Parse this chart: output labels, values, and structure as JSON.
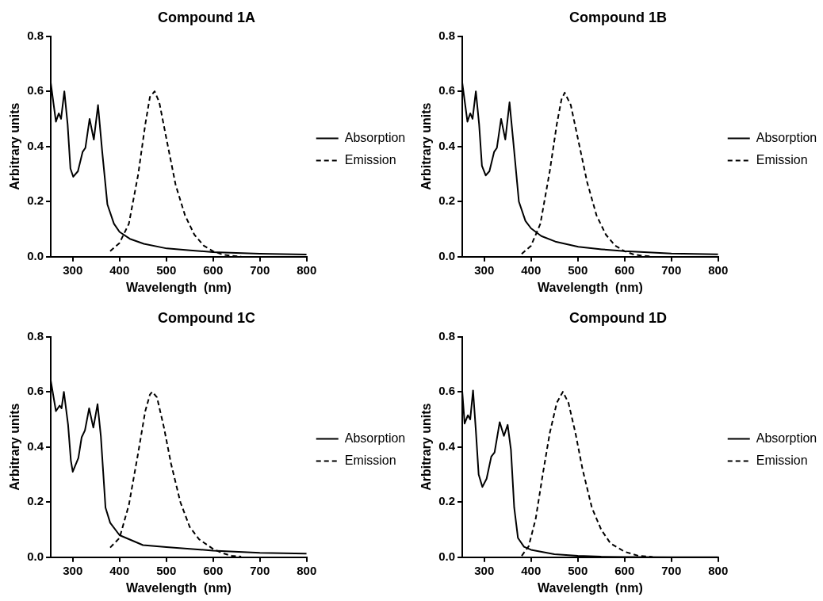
{
  "chart_data": [
    {
      "type": "line",
      "title": "Compound 1A",
      "xlabel": "Wavelength  (nm)",
      "ylabel": "Arbitrary units",
      "xlim": [
        253,
        800
      ],
      "ylim": [
        0,
        0.8
      ],
      "xticks": [
        300,
        400,
        500,
        600,
        700,
        800
      ],
      "yticks": [
        {
          "value": 0,
          "label": "0.0"
        },
        {
          "value": 0.2,
          "label": "0.2"
        },
        {
          "value": 0.4,
          "label": "0.4"
        },
        {
          "value": 0.6,
          "label": "0.6"
        },
        {
          "value": 0.8,
          "label": "0.8"
        }
      ],
      "grid": false,
      "legend": "right",
      "marker": "none",
      "series": [
        {
          "name": "Absorption",
          "color": "#000000",
          "line_style": "solid",
          "x": [
            253,
            264,
            270,
            275,
            282,
            289,
            295,
            301,
            311,
            321,
            327,
            336,
            345,
            354,
            363,
            374,
            388,
            400,
            422,
            452,
            501,
            551,
            600,
            700,
            800
          ],
          "values": [
            0.63,
            0.49,
            0.52,
            0.5,
            0.6,
            0.48,
            0.32,
            0.29,
            0.31,
            0.38,
            0.395,
            0.5,
            0.425,
            0.55,
            0.38,
            0.19,
            0.12,
            0.09,
            0.065,
            0.047,
            0.03,
            0.023,
            0.017,
            0.011,
            0.008
          ]
        },
        {
          "name": "Emission",
          "color": "#000000",
          "line_style": "dashed",
          "x": [
            380,
            400,
            420,
            440,
            455,
            465,
            475,
            485,
            500,
            520,
            540,
            560,
            580,
            600,
            620,
            640,
            660
          ],
          "values": [
            0.02,
            0.05,
            0.12,
            0.3,
            0.48,
            0.58,
            0.6,
            0.56,
            0.43,
            0.26,
            0.15,
            0.08,
            0.04,
            0.02,
            0.008,
            0.003,
            0.001
          ]
        }
      ]
    },
    {
      "type": "line",
      "title": "Compound 1B",
      "xlabel": "Wavelength  (nm)",
      "ylabel": "Arbitrary units",
      "xlim": [
        253,
        800
      ],
      "ylim": [
        0,
        0.8
      ],
      "xticks": [
        300,
        400,
        500,
        600,
        700,
        800
      ],
      "yticks": [
        {
          "value": 0,
          "label": "0.0"
        },
        {
          "value": 0.2,
          "label": "0.2"
        },
        {
          "value": 0.4,
          "label": "0.4"
        },
        {
          "value": 0.6,
          "label": "0.6"
        },
        {
          "value": 0.8,
          "label": "0.8"
        }
      ],
      "grid": false,
      "legend": "right",
      "marker": "none",
      "series": [
        {
          "name": "Absorption",
          "color": "#000000",
          "line_style": "solid",
          "x": [
            253,
            264,
            270,
            275,
            282,
            289,
            295,
            303,
            311,
            321,
            327,
            336,
            345,
            354,
            363,
            374,
            388,
            400,
            422,
            452,
            501,
            551,
            600,
            700,
            800
          ],
          "values": [
            0.63,
            0.49,
            0.52,
            0.5,
            0.6,
            0.48,
            0.33,
            0.295,
            0.31,
            0.38,
            0.395,
            0.5,
            0.425,
            0.56,
            0.4,
            0.2,
            0.13,
            0.103,
            0.075,
            0.055,
            0.036,
            0.027,
            0.02,
            0.012,
            0.009
          ]
        },
        {
          "name": "Emission",
          "color": "#000000",
          "line_style": "dashed",
          "x": [
            380,
            400,
            420,
            440,
            455,
            465,
            472,
            485,
            500,
            520,
            540,
            560,
            580,
            600,
            620,
            640,
            660
          ],
          "values": [
            0.01,
            0.04,
            0.12,
            0.31,
            0.48,
            0.57,
            0.595,
            0.55,
            0.43,
            0.27,
            0.15,
            0.08,
            0.04,
            0.02,
            0.008,
            0.003,
            0.001
          ]
        }
      ]
    },
    {
      "type": "line",
      "title": "Compound 1C",
      "xlabel": "Wavelength  (nm)",
      "ylabel": "Arbitrary units",
      "xlim": [
        253,
        800
      ],
      "ylim": [
        0,
        0.8
      ],
      "xticks": [
        300,
        400,
        500,
        600,
        700,
        800
      ],
      "yticks": [
        {
          "value": 0,
          "label": "0.0"
        },
        {
          "value": 0.2,
          "label": "0.2"
        },
        {
          "value": 0.4,
          "label": "0.4"
        },
        {
          "value": 0.6,
          "label": "0.6"
        },
        {
          "value": 0.8,
          "label": "0.8"
        }
      ],
      "grid": false,
      "legend": "right",
      "marker": "none",
      "series": [
        {
          "name": "Absorption",
          "color": "#000000",
          "line_style": "solid",
          "x": [
            253,
            264,
            272,
            276,
            281,
            290,
            296,
            300,
            312,
            319,
            326,
            335,
            344,
            353,
            360,
            370,
            380,
            400,
            450,
            500,
            600,
            700,
            800
          ],
          "values": [
            0.64,
            0.53,
            0.55,
            0.54,
            0.6,
            0.48,
            0.35,
            0.31,
            0.36,
            0.435,
            0.46,
            0.54,
            0.47,
            0.555,
            0.44,
            0.18,
            0.125,
            0.08,
            0.044,
            0.037,
            0.024,
            0.016,
            0.013
          ]
        },
        {
          "name": "Emission",
          "color": "#000000",
          "line_style": "dashed",
          "x": [
            380,
            400,
            420,
            440,
            455,
            465,
            470,
            480,
            495,
            510,
            530,
            550,
            570,
            600,
            620,
            640,
            660
          ],
          "values": [
            0.035,
            0.07,
            0.19,
            0.38,
            0.53,
            0.59,
            0.6,
            0.58,
            0.47,
            0.34,
            0.2,
            0.11,
            0.065,
            0.03,
            0.015,
            0.005,
            0.002
          ]
        }
      ]
    },
    {
      "type": "line",
      "title": "Compound 1D",
      "xlabel": "Wavelength  (nm)",
      "ylabel": "Arbitrary units",
      "xlim": [
        253,
        800
      ],
      "ylim": [
        0,
        0.8
      ],
      "xticks": [
        300,
        400,
        500,
        600,
        700,
        800
      ],
      "yticks": [
        {
          "value": 0,
          "label": "0.0"
        },
        {
          "value": 0.2,
          "label": "0.2"
        },
        {
          "value": 0.4,
          "label": "0.4"
        },
        {
          "value": 0.6,
          "label": "0.6"
        },
        {
          "value": 0.8,
          "label": "0.8"
        }
      ],
      "grid": false,
      "legend": "right",
      "marker": "none",
      "series": [
        {
          "name": "Absorption",
          "color": "#000000",
          "line_style": "solid",
          "x": [
            253,
            258,
            265,
            270,
            276,
            282,
            288,
            296,
            305,
            315,
            322,
            333,
            342,
            350,
            357,
            364,
            372,
            385,
            400,
            450,
            500,
            550,
            600,
            700,
            800
          ],
          "values": [
            0.6,
            0.485,
            0.515,
            0.5,
            0.605,
            0.46,
            0.3,
            0.255,
            0.285,
            0.365,
            0.38,
            0.49,
            0.44,
            0.48,
            0.39,
            0.18,
            0.07,
            0.038,
            0.027,
            0.011,
            0.005,
            0.002,
            0.001,
            0,
            0
          ]
        },
        {
          "name": "Emission",
          "color": "#000000",
          "line_style": "dashed",
          "x": [
            380,
            395,
            410,
            425,
            440,
            455,
            468,
            480,
            495,
            510,
            530,
            550,
            570,
            600,
            630,
            660
          ],
          "values": [
            0.005,
            0.04,
            0.14,
            0.3,
            0.45,
            0.56,
            0.6,
            0.56,
            0.45,
            0.32,
            0.18,
            0.1,
            0.05,
            0.02,
            0.005,
            0.001
          ]
        }
      ]
    }
  ]
}
